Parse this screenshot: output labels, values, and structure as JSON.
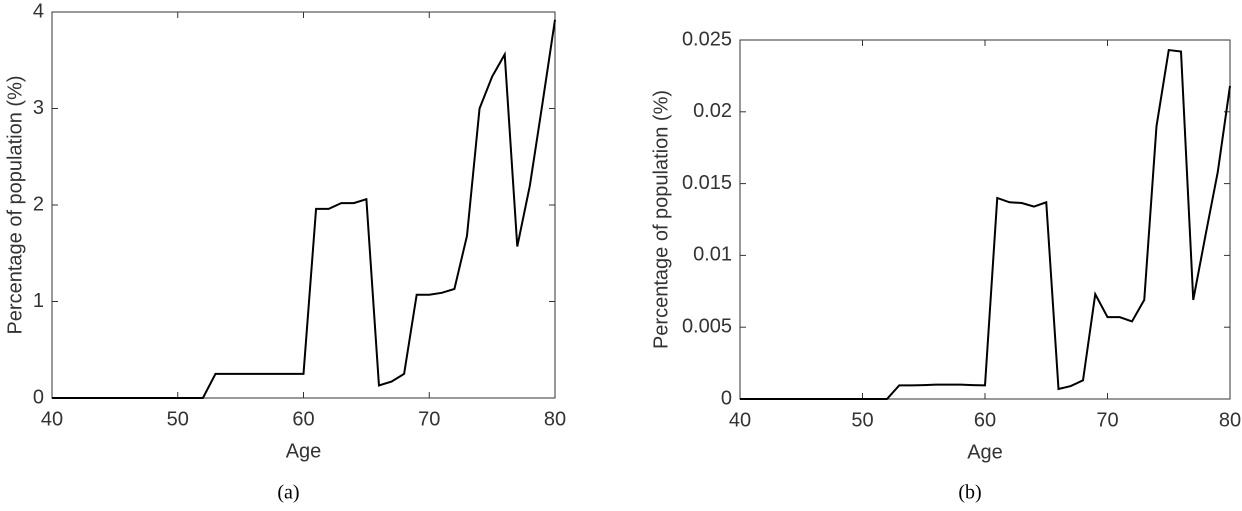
{
  "chart_data": [
    {
      "type": "line",
      "caption": "(a)",
      "x_label": "Age",
      "y_label": "Percentage of population (%)",
      "x": [
        40,
        41,
        42,
        43,
        44,
        45,
        46,
        47,
        48,
        49,
        50,
        51,
        52,
        53,
        54,
        55,
        56,
        57,
        58,
        59,
        60,
        61,
        62,
        63,
        64,
        65,
        66,
        67,
        68,
        69,
        70,
        71,
        72,
        73,
        74,
        75,
        76,
        77,
        78,
        79,
        80
      ],
      "values": [
        0,
        0,
        0,
        0,
        0,
        0,
        0,
        0,
        0,
        0,
        0,
        0,
        0,
        0.25,
        0.25,
        0.25,
        0.25,
        0.25,
        0.25,
        0.25,
        0.25,
        1.96,
        1.96,
        2.02,
        2.02,
        2.06,
        0.13,
        0.17,
        0.25,
        1.07,
        1.07,
        1.09,
        1.13,
        1.68,
        3.0,
        3.33,
        3.56,
        1.57,
        2.2,
        3.05,
        3.92
      ],
      "color": "#000000",
      "xlim": [
        40,
        80
      ],
      "xticks": [
        40,
        50,
        60,
        70,
        80
      ],
      "ylim": [
        0,
        4
      ],
      "yticks": [
        0,
        1,
        2,
        3,
        4
      ]
    },
    {
      "type": "line",
      "caption": "(b)",
      "x_label": "Age",
      "y_label": "Percentage of population (%)",
      "x": [
        40,
        41,
        42,
        43,
        44,
        45,
        46,
        47,
        48,
        49,
        50,
        51,
        52,
        53,
        54,
        55,
        56,
        57,
        58,
        59,
        60,
        61,
        62,
        63,
        64,
        65,
        66,
        67,
        68,
        69,
        70,
        71,
        72,
        73,
        74,
        75,
        76,
        77,
        78,
        79,
        80
      ],
      "values": [
        0,
        0,
        0,
        0,
        0,
        0,
        0,
        0,
        0,
        0,
        0,
        0,
        0,
        0.00095,
        0.00095,
        0.00097,
        0.001,
        0.001,
        0.001,
        0.00097,
        0.00095,
        0.014,
        0.0137,
        0.01365,
        0.0134,
        0.0137,
        0.0007,
        0.0009,
        0.0013,
        0.0073,
        0.0057,
        0.0057,
        0.0054,
        0.0069,
        0.019,
        0.0243,
        0.0242,
        0.0069,
        0.0114,
        0.0158,
        0.0218
      ],
      "color": "#000000",
      "xlim": [
        40,
        80
      ],
      "xticks": [
        40,
        50,
        60,
        70,
        80
      ],
      "ylim": [
        0,
        0.025
      ],
      "yticks": [
        0,
        0.005,
        0.01,
        0.015,
        0.02,
        0.025
      ]
    }
  ]
}
